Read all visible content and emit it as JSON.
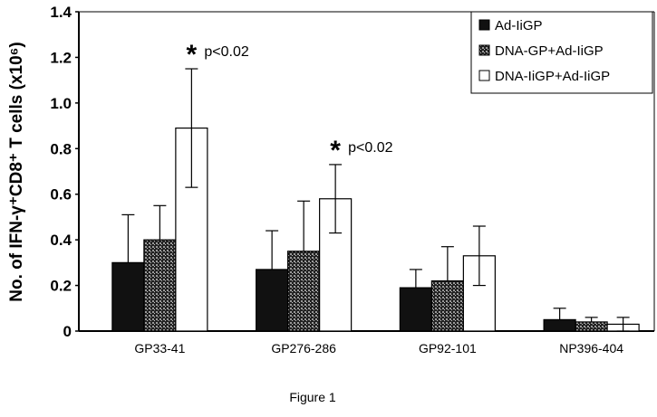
{
  "chart_data": {
    "type": "bar",
    "title": "",
    "caption": "Figure 1",
    "xlabel": "",
    "ylabel": "No. of IFN-γ⁺CD8⁺ T cells (x10⁶)",
    "ylim": [
      0,
      1.4
    ],
    "yticks": [
      "0",
      "0.2",
      "0.4",
      "0.6",
      "0.8",
      "1.0",
      "1.2",
      "1.4"
    ],
    "categories": [
      "GP33-41",
      "GP276-286",
      "GP92-101",
      "NP396-404"
    ],
    "legend_position": "top-right",
    "series": [
      {
        "name": "Ad-IiGP",
        "fill": "#111111",
        "values": [
          0.3,
          0.27,
          0.19,
          0.05
        ],
        "errors": [
          0.21,
          0.17,
          0.08,
          0.05
        ]
      },
      {
        "name": "DNA-GP+Ad-IiGP",
        "fill": "#555555",
        "values": [
          0.4,
          0.35,
          0.22,
          0.04
        ],
        "errors": [
          0.15,
          0.22,
          0.15,
          0.02
        ]
      },
      {
        "name": "DNA-IiGP+Ad-IiGP",
        "fill": "#ffffff",
        "values": [
          0.89,
          0.58,
          0.33,
          0.03
        ],
        "errors": [
          0.26,
          0.15,
          0.13,
          0.03
        ]
      }
    ],
    "annotations": [
      {
        "category": "GP33-41",
        "star": "*",
        "text": "p<0.02"
      },
      {
        "category": "GP276-286",
        "star": "*",
        "text": "p<0.02"
      }
    ]
  }
}
